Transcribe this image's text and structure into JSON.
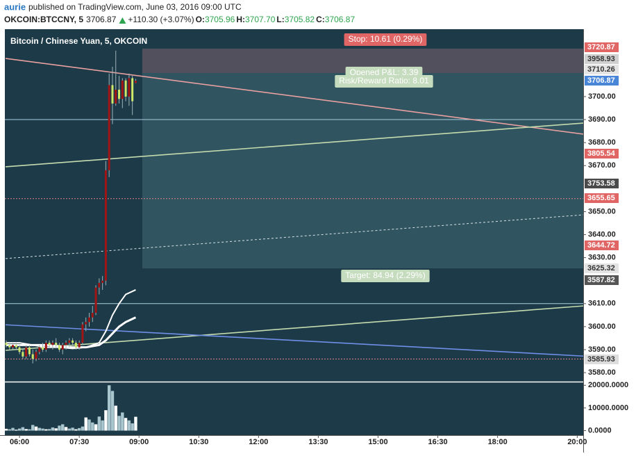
{
  "header": {
    "user": "aurie",
    "text": "published on TradingView.com, June 03, 2016 09:00 UTC"
  },
  "symbol": {
    "name": "OKCOIN:BTCCNY, 5",
    "last": "3706.87",
    "change": "+110.30 (+3.07%)",
    "ohlc": [
      {
        "key": "O:",
        "value": "3705.96"
      },
      {
        "key": "H:",
        "value": "3707.70"
      },
      {
        "key": "L:",
        "value": "3705.82"
      },
      {
        "key": "C:",
        "value": "3706.87"
      }
    ]
  },
  "chart_data": {
    "type": "candlestick",
    "title": "Bitcoin / Chinese Yuan, 5, OKCOIN",
    "x": [
      340,
      345,
      350,
      355,
      360,
      365,
      370,
      375,
      380,
      385,
      390,
      395,
      400,
      405,
      410,
      415,
      420,
      425,
      430,
      435,
      440,
      445,
      450,
      455,
      460,
      465,
      470,
      475,
      480,
      485,
      490,
      495,
      500,
      505,
      510,
      515,
      520,
      525,
      530,
      535
    ],
    "open": [
      3593,
      3592,
      3591,
      3592,
      3591,
      3589,
      3587,
      3591,
      3588,
      3586,
      3589,
      3591,
      3590,
      3593,
      3592,
      3593,
      3592,
      3590,
      3592,
      3593,
      3594,
      3593,
      3591,
      3593,
      3601,
      3602,
      3604,
      3606,
      3617,
      3619,
      3620,
      3668,
      3705,
      3697,
      3703,
      3699,
      3707,
      3700,
      3708,
      3705.96
    ],
    "high": [
      3594,
      3593,
      3593,
      3593,
      3592,
      3590,
      3592,
      3592,
      3590,
      3590,
      3592,
      3593,
      3594,
      3594,
      3594,
      3595,
      3593,
      3593,
      3594,
      3595,
      3595,
      3594,
      3594,
      3602,
      3604,
      3606,
      3609,
      3618,
      3621,
      3622,
      3672,
      3710,
      3713,
      3720,
      3709,
      3708,
      3708,
      3710,
      3709,
      3707.7
    ],
    "low": [
      3591,
      3590,
      3590,
      3590,
      3588,
      3586,
      3586,
      3587,
      3584,
      3585,
      3588,
      3589,
      3589,
      3591,
      3590,
      3591,
      3589,
      3588,
      3590,
      3591,
      3592,
      3590,
      3590,
      3592,
      3598,
      3600,
      3602,
      3605,
      3614,
      3616,
      3618,
      3665,
      3688,
      3696,
      3697,
      3695,
      3698,
      3696,
      3692,
      3705.82
    ],
    "close": [
      3592,
      3591,
      3592,
      3591,
      3589,
      3587,
      3591,
      3588,
      3586,
      3589,
      3591,
      3590,
      3593,
      3592,
      3593,
      3592,
      3590,
      3592,
      3593,
      3594,
      3593,
      3591,
      3593,
      3601,
      3602,
      3604,
      3606,
      3617,
      3619,
      3620,
      3668,
      3705,
      3697,
      3703,
      3699,
      3707,
      3700,
      3708,
      3698,
      3706.87
    ],
    "up_color": "#a31515",
    "down_color": "#cfe86a",
    "xlim": [
      339,
      1209
    ],
    "xticks": [
      {
        "value": 360,
        "label": "06:00"
      },
      {
        "value": 450,
        "label": "07:30"
      },
      {
        "value": 540,
        "label": "09:00"
      },
      {
        "value": 630,
        "label": "10:30"
      },
      {
        "value": 720,
        "label": "12:00"
      },
      {
        "value": 810,
        "label": "13:30"
      },
      {
        "value": 900,
        "label": "15:00"
      },
      {
        "value": 990,
        "label": "16:30"
      },
      {
        "value": 1080,
        "label": "18:00"
      },
      {
        "value": 1200,
        "label": "20:00"
      }
    ],
    "ylim": [
      3576.4,
      3729.3
    ],
    "yticks": [
      {
        "value": 3580,
        "label": "3580.00"
      },
      {
        "value": 3590,
        "label": "3590.00"
      },
      {
        "value": 3600,
        "label": "3600.00"
      },
      {
        "value": 3610,
        "label": "3610.00"
      },
      {
        "value": 3630,
        "label": "3630.00"
      },
      {
        "value": 3640,
        "label": "3640.00"
      },
      {
        "value": 3650,
        "label": "3650.00"
      },
      {
        "value": 3670,
        "label": "3670.00"
      },
      {
        "value": 3680,
        "label": "3680.00"
      },
      {
        "value": 3690,
        "label": "3690.00"
      },
      {
        "value": 3700,
        "label": "3700.00"
      }
    ],
    "volume": {
      "values": [
        800,
        600,
        1200,
        400,
        900,
        1500,
        700,
        600,
        2500,
        1800,
        1200,
        900,
        600,
        700,
        1400,
        1000,
        2200,
        2800,
        1600,
        900,
        1300,
        600,
        1100,
        1800,
        5800,
        4900,
        3600,
        2800,
        6200,
        4500,
        9000,
        20000,
        17500,
        11000,
        6500,
        8000,
        5600,
        4500,
        3200,
        6100
      ],
      "color": "#a9c6cf",
      "ylim": [
        -2000,
        21000
      ],
      "yticks": [
        {
          "value": 0,
          "label": "0.0000"
        },
        {
          "value": 10000,
          "label": "10000.0000"
        },
        {
          "value": 20000,
          "label": "20000.0000"
        }
      ]
    },
    "moving_averages": [
      {
        "color": "#ffffff",
        "x": [
          340,
          360,
          380,
          400,
          420,
          440,
          460,
          480,
          490,
          500,
          510,
          520,
          535
        ],
        "values": [
          3592,
          3592,
          3592,
          3592,
          3591.5,
          3591,
          3591,
          3592,
          3594,
          3597,
          3600,
          3602,
          3604
        ]
      },
      {
        "color": "#ffffff",
        "x": [
          340,
          360,
          380,
          400,
          420,
          440,
          460,
          480,
          490,
          500,
          510,
          520,
          535
        ],
        "values": [
          3593,
          3593,
          3592,
          3591,
          3591,
          3590.5,
          3591,
          3593,
          3598,
          3605,
          3610,
          3614,
          3616
        ]
      }
    ],
    "trendlines": [
      {
        "color": "#e8a0a0",
        "dash": false,
        "x": [
          339,
          1209
        ],
        "values": [
          3716.6,
          3683.7
        ]
      },
      {
        "color": "#c5dcae",
        "dash": false,
        "x": [
          339,
          1209
        ],
        "values": [
          3669.5,
          3688.5
        ]
      },
      {
        "color": "#c5dcae",
        "dash": false,
        "x": [
          339,
          1209
        ],
        "values": [
          3589.7,
          3609.0
        ]
      },
      {
        "color": "#6f8fe8",
        "dash": false,
        "x": [
          339,
          1209
        ],
        "values": [
          3600.8,
          3587.2
        ]
      },
      {
        "color": "#d8e4e8",
        "dash": true,
        "x": [
          339,
          1209
        ],
        "values": [
          3629.6,
          3648.6
        ]
      }
    ],
    "hlines": [
      {
        "value": 3690,
        "color": "#a9cfe0",
        "dash": false
      },
      {
        "value": 3610,
        "color": "#a9cfe0",
        "dash": false
      },
      {
        "value": 3655.65,
        "color": "#e08080",
        "dash": true
      },
      {
        "value": 3585.93,
        "color": "#e08080",
        "dash": true
      }
    ],
    "position": {
      "x": [
        545,
        1209
      ],
      "stop": [
        3710.26,
        3720.87
      ],
      "target": [
        3625.32,
        3710.26
      ],
      "stop_label": "Stop: 10.61 (0.29%)",
      "pnl_label": "Opened P&L: 3.39",
      "rr_label": "Risk/Reward Ratio: 8.01",
      "target_label": "Target: 84.94 (2.29%)"
    },
    "price_labels": [
      {
        "label": "3720.87",
        "color": "#e06666",
        "text_color": "#ffffff"
      },
      {
        "label": "3958.93",
        "color": "#d0d0d0",
        "text_color": "#333333"
      },
      {
        "label": "3710.26",
        "color": "#e4e4e4",
        "text_color": "#333333"
      },
      {
        "label": "3706.87",
        "color": "#4a86d8",
        "text_color": "#ffffff"
      },
      {
        "label": "3805.54",
        "color": "#e06666",
        "text_color": "#ffffff"
      },
      {
        "label": "3753.58",
        "color": "#4a4a4a",
        "text_color": "#ffffff"
      },
      {
        "label": "3655.65",
        "color": "#e06666",
        "text_color": "#ffffff"
      },
      {
        "label": "3644.72",
        "color": "#e06666",
        "text_color": "#ffffff"
      },
      {
        "label": "3625.32",
        "color": "#e4e4e4",
        "text_color": "#333333"
      },
      {
        "label": "3587.82",
        "color": "#555555",
        "text_color": "#ffffff"
      },
      {
        "label": "3585.93",
        "color": "#dddddd",
        "text_color": "#333333"
      }
    ]
  }
}
